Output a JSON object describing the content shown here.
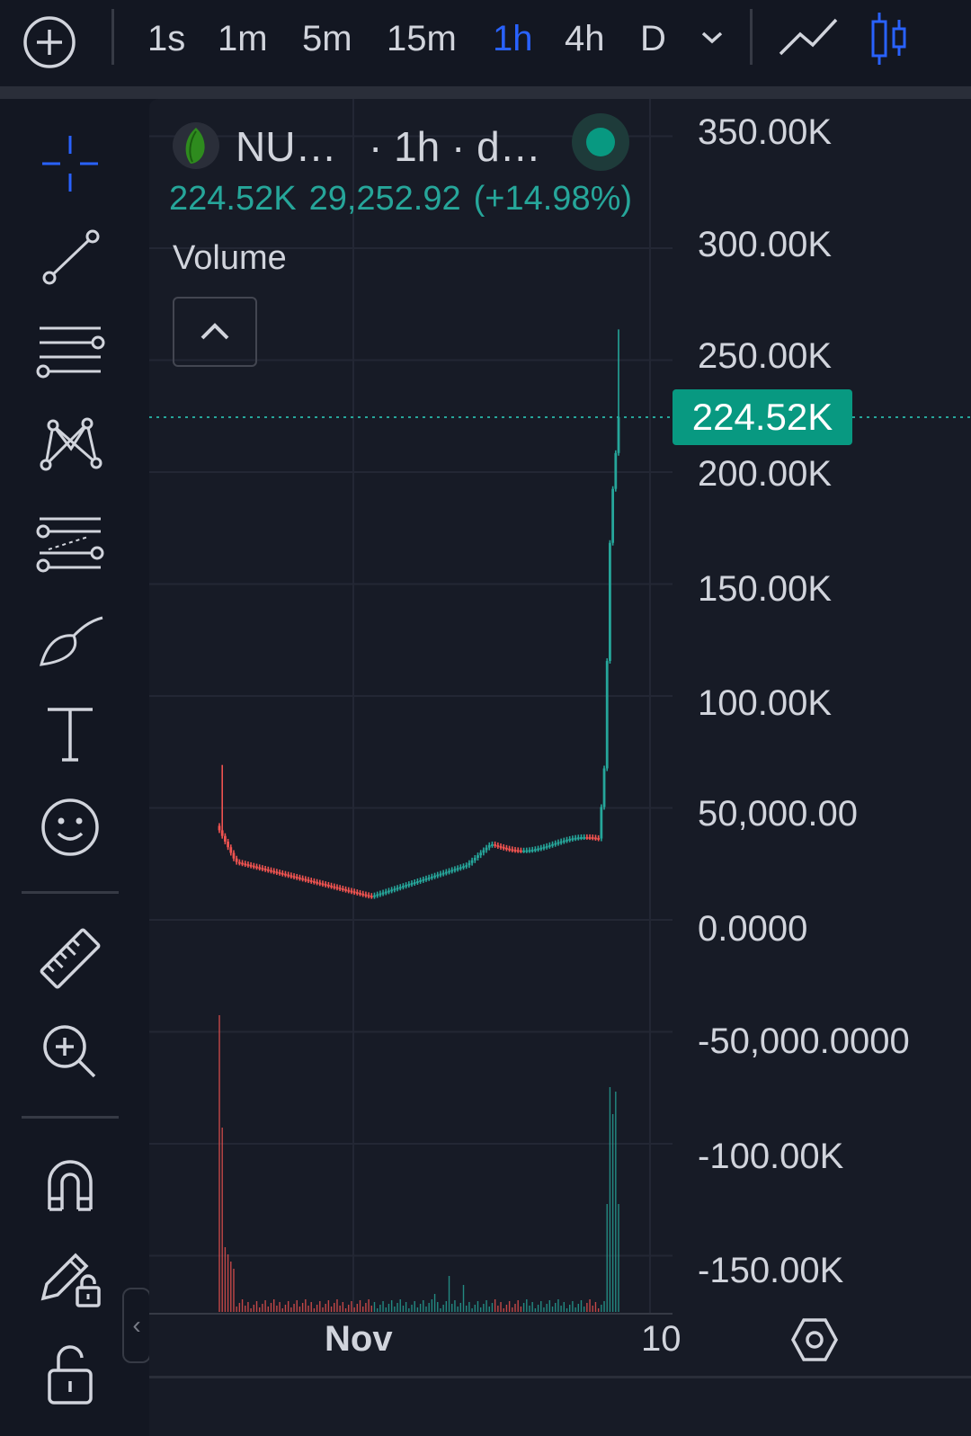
{
  "toolbar": {
    "add_icon": "plus-circle-icon",
    "intervals": [
      "1s",
      "1m",
      "5m",
      "15m",
      "1h",
      "4h",
      "D"
    ],
    "active_interval": "1h",
    "dropdown_icon": "chevron-down-icon",
    "chart_style_icons": [
      "line-chart-icon",
      "candlestick-icon"
    ]
  },
  "sidebar": {
    "tools": [
      "crosshair-icon",
      "trend-line-icon",
      "horizontal-lines-icon",
      "pattern-icon",
      "fib-retracement-icon",
      "brush-icon",
      "text-icon",
      "emoji-icon",
      "ruler-icon",
      "zoom-in-icon",
      "magnet-icon",
      "lock-drawing-icon",
      "unlock-icon"
    ],
    "collapse_label": "‹"
  },
  "legend": {
    "symbol": "NU…",
    "interval_exchange": "· 1h · d…",
    "last_price": "224.52K",
    "change": "29,252.92",
    "change_pct": "(+14.98%)",
    "indicator": "Volume"
  },
  "price_scale": {
    "ticks": [
      "350.00K",
      "300.00K",
      "250.00K",
      "200.00K",
      "150.00K",
      "100.00K",
      "50,000.00",
      "0.0000",
      "-50,000.0000",
      "-100.00K",
      "-150.00K"
    ],
    "current_label": "224.52K"
  },
  "time_scale": {
    "ticks": [
      "Nov",
      "10"
    ]
  },
  "colors": {
    "up": "#26a69a",
    "down": "#ef5350",
    "accent": "#2962ff",
    "price_tag": "#089981"
  },
  "chart_data": {
    "type": "candlestick",
    "interval": "1h",
    "ylim": [
      -175000,
      375000
    ],
    "close_series_approx": [
      40000,
      32000,
      26000,
      22000,
      18000,
      15000,
      13000,
      11000,
      10500,
      10800,
      13000,
      17000,
      22000,
      27000,
      30000,
      34000,
      33500,
      31000,
      32000,
      34000,
      36000,
      55000,
      80000,
      120000,
      170000,
      210000,
      224520
    ],
    "last_price": 224520,
    "change": 29252.92,
    "change_pct": 14.98
  }
}
